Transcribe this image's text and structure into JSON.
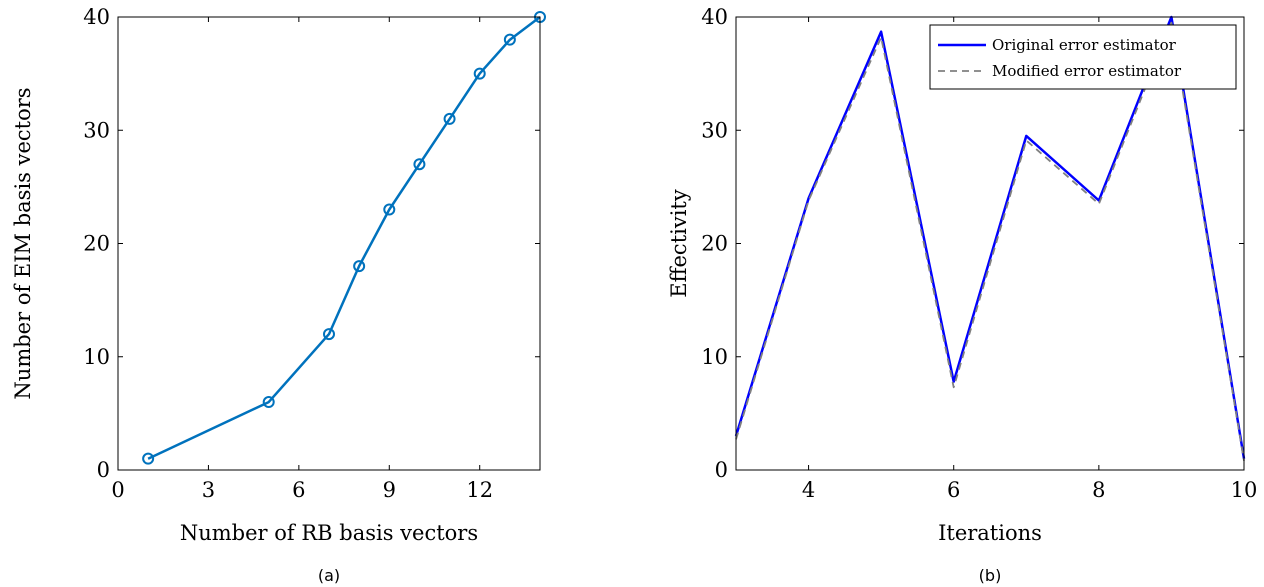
{
  "chart_data": [
    {
      "type": "line",
      "caption": "(a)",
      "xlabel": "Number of RB basis vectors",
      "ylabel": "Number of EIM basis vectors",
      "xlim": [
        0,
        14
      ],
      "ylim": [
        0,
        40
      ],
      "xticks": [
        0,
        3,
        6,
        9,
        12
      ],
      "yticks": [
        0,
        10,
        20,
        30,
        40
      ],
      "color": "#0072BD",
      "marker": "circle",
      "grid": false,
      "series": [
        {
          "x": [
            1,
            5,
            7,
            8,
            9,
            10,
            11,
            12,
            13,
            14
          ],
          "y": [
            1,
            6,
            12,
            18,
            23,
            27,
            31,
            35,
            38,
            40
          ]
        }
      ]
    },
    {
      "type": "line",
      "caption": "(b)",
      "xlabel": "Iterations",
      "ylabel": "Effectivity",
      "xlim": [
        3,
        10
      ],
      "ylim": [
        0,
        40
      ],
      "xticks": [
        4,
        6,
        8,
        10
      ],
      "yticks": [
        0,
        10,
        20,
        30,
        40
      ],
      "grid": false,
      "legend_position": "top-right",
      "series": [
        {
          "name": "Original error estimator",
          "color": "#0000FF",
          "style": "solid",
          "x": [
            3,
            4,
            5,
            6,
            7,
            8,
            9,
            10
          ],
          "y": [
            3,
            24,
            38.7,
            7.8,
            29.5,
            23.8,
            40,
            1
          ]
        },
        {
          "name": "Modified error estimator",
          "color": "#808080",
          "style": "dashed",
          "x": [
            3,
            4,
            5,
            6,
            7,
            8,
            9,
            10
          ],
          "y": [
            2.7,
            23.8,
            38.2,
            7.3,
            29.1,
            23.5,
            39.5,
            0.8
          ]
        }
      ]
    }
  ]
}
